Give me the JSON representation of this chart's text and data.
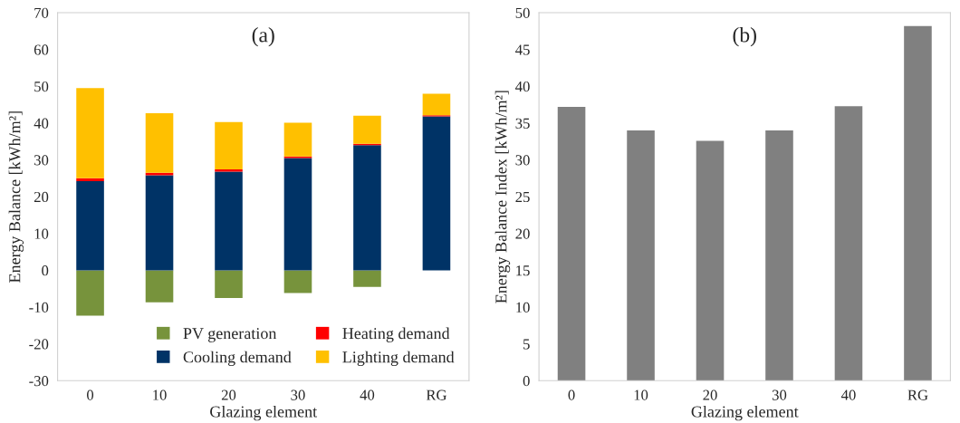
{
  "chart_data": [
    {
      "type": "bar",
      "title": "(a)",
      "xlabel": "Glazing element",
      "ylabel": "Energy Balance [kWh/m²]",
      "categories": [
        "0",
        "10",
        "20",
        "30",
        "40",
        "RG"
      ],
      "stacked": true,
      "ylim": [
        -30,
        70
      ],
      "yticks": [
        -30,
        -20,
        -10,
        0,
        10,
        20,
        30,
        40,
        50,
        60,
        70
      ],
      "grid": false,
      "legend": "bottom right",
      "series": [
        {
          "name": "PV generation",
          "color": "#77933c",
          "values": [
            -12.3,
            -8.7,
            -7.5,
            -6.2,
            -4.5,
            0
          ]
        },
        {
          "name": "Cooling demand",
          "color": "#003366",
          "values": [
            24.2,
            25.8,
            26.8,
            30.5,
            34.0,
            41.8
          ]
        },
        {
          "name": "Heating demand",
          "color": "#ff0000",
          "values": [
            0.8,
            0.7,
            0.6,
            0.4,
            0.4,
            0.3
          ]
        },
        {
          "name": "Lighting demand",
          "color": "#ffc000",
          "values": [
            24.5,
            16.2,
            12.9,
            9.2,
            7.6,
            5.9
          ]
        }
      ]
    },
    {
      "type": "bar",
      "title": "(b)",
      "xlabel": "Glazing element",
      "ylabel": "Energy Balance Index [kWh/m²]",
      "categories": [
        "0",
        "10",
        "20",
        "30",
        "40",
        "RG"
      ],
      "ylim": [
        0,
        50
      ],
      "yticks": [
        0,
        5,
        10,
        15,
        20,
        25,
        30,
        35,
        40,
        45,
        50
      ],
      "grid": false,
      "legend": false,
      "series": [
        {
          "color": "#808080",
          "values": [
            37.2,
            34.0,
            32.6,
            34.0,
            37.3,
            48.2
          ]
        }
      ]
    }
  ]
}
